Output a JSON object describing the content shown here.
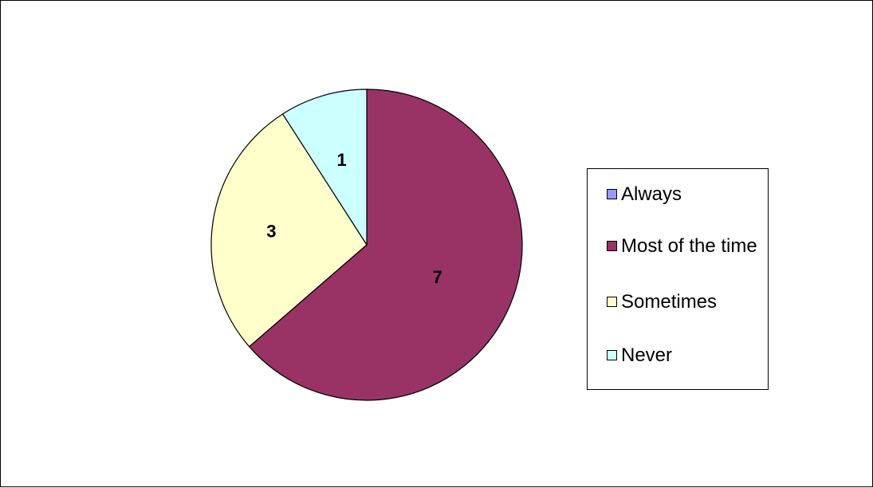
{
  "chart_data": {
    "type": "pie",
    "categories": [
      "Always",
      "Most of the time",
      "Sometimes",
      "Never"
    ],
    "values": [
      0,
      7,
      3,
      1
    ],
    "data_labels": [
      "",
      "7",
      "3",
      "1"
    ],
    "colors": [
      "#9999ff",
      "#993366",
      "#ffffcc",
      "#ccffff"
    ],
    "start_angle": "top (12 o'clock)",
    "direction": "clockwise",
    "legend_placement": "right",
    "title": ""
  }
}
